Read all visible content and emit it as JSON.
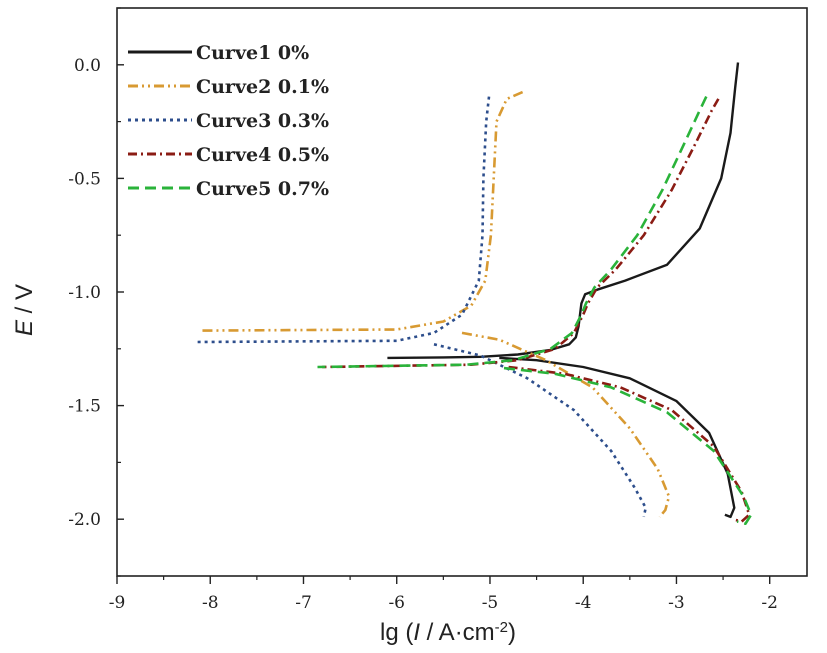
{
  "chart_data": {
    "type": "line",
    "xlabel_parts": {
      "pre": "lg (",
      "var": "I",
      "post": " / A·cm",
      "sup": "-2",
      "close": ")"
    },
    "ylabel_parts": {
      "var": "E",
      "post": " / V"
    },
    "xlim": [
      -9,
      -1.6
    ],
    "ylim": [
      -2.25,
      0.25
    ],
    "xticks": [
      -9,
      -8,
      -7,
      -6,
      -5,
      -4,
      -3,
      -2
    ],
    "yticks": [
      0.0,
      -0.5,
      -1.0,
      -1.5,
      -2.0
    ],
    "xtick_labels": [
      "-9",
      "-8",
      "-7",
      "-6",
      "-5",
      "-4",
      "-3",
      "-2"
    ],
    "ytick_labels": [
      "0.0",
      "-0.5",
      "-1.0",
      "-1.5",
      "-2.0"
    ],
    "grid": false,
    "legend_position": "top-left",
    "series": [
      {
        "name": "Curve1 0%",
        "color": "#1a1a1a",
        "dash": "solid",
        "points": [
          [
            -2.34,
            0.01
          ],
          [
            -2.37,
            -0.1
          ],
          [
            -2.42,
            -0.3
          ],
          [
            -2.52,
            -0.5
          ],
          [
            -2.75,
            -0.72
          ],
          [
            -3.1,
            -0.88
          ],
          [
            -3.55,
            -0.95
          ],
          [
            -3.85,
            -0.99
          ],
          [
            -3.98,
            -1.01
          ],
          [
            -4.02,
            -1.05
          ],
          [
            -4.05,
            -1.15
          ],
          [
            -4.08,
            -1.2
          ],
          [
            -4.15,
            -1.23
          ],
          [
            -4.35,
            -1.255
          ],
          [
            -4.7,
            -1.275
          ],
          [
            -5.1,
            -1.285
          ],
          [
            -5.5,
            -1.288
          ],
          [
            -6.1,
            -1.29
          ],
          null,
          [
            -4.9,
            -1.29
          ],
          [
            -4.5,
            -1.3
          ],
          [
            -4.0,
            -1.33
          ],
          [
            -3.5,
            -1.38
          ],
          [
            -3.0,
            -1.48
          ],
          [
            -2.65,
            -1.62
          ],
          [
            -2.45,
            -1.8
          ],
          [
            -2.38,
            -1.95
          ],
          [
            -2.42,
            -1.99
          ],
          [
            -2.48,
            -1.98
          ]
        ]
      },
      {
        "name": "Curve2 0.1%",
        "color": "#d89a32",
        "dash": "dashdotdot",
        "points": [
          [
            -4.65,
            -0.12
          ],
          [
            -4.82,
            -0.15
          ],
          [
            -4.93,
            -0.25
          ],
          [
            -4.96,
            -0.5
          ],
          [
            -4.99,
            -0.75
          ],
          [
            -5.05,
            -0.95
          ],
          [
            -5.2,
            -1.06
          ],
          [
            -5.5,
            -1.13
          ],
          [
            -6.0,
            -1.165
          ],
          [
            -8.1,
            -1.17
          ],
          null,
          [
            -5.3,
            -1.18
          ],
          [
            -4.9,
            -1.21
          ],
          [
            -4.4,
            -1.3
          ],
          [
            -3.9,
            -1.42
          ],
          [
            -3.5,
            -1.6
          ],
          [
            -3.2,
            -1.78
          ],
          [
            -3.08,
            -1.9
          ],
          [
            -3.12,
            -1.96
          ],
          [
            -3.18,
            -1.99
          ]
        ]
      },
      {
        "name": "Curve3 0.3%",
        "color": "#2d4e8c",
        "dash": "dot",
        "points": [
          [
            -5.01,
            -0.14
          ],
          [
            -5.04,
            -0.25
          ],
          [
            -5.07,
            -0.5
          ],
          [
            -5.08,
            -0.75
          ],
          [
            -5.12,
            -0.95
          ],
          [
            -5.3,
            -1.1
          ],
          [
            -5.6,
            -1.18
          ],
          [
            -6.0,
            -1.215
          ],
          [
            -8.15,
            -1.22
          ],
          null,
          [
            -5.6,
            -1.23
          ],
          [
            -5.1,
            -1.28
          ],
          [
            -4.6,
            -1.38
          ],
          [
            -4.1,
            -1.52
          ],
          [
            -3.7,
            -1.7
          ],
          [
            -3.45,
            -1.86
          ],
          [
            -3.33,
            -1.95
          ],
          [
            -3.35,
            -1.99
          ]
        ]
      },
      {
        "name": "Curve4 0.5%",
        "color": "#8b1c14",
        "dash": "dashdot",
        "points": [
          [
            -2.55,
            -0.15
          ],
          [
            -2.62,
            -0.2
          ],
          [
            -2.8,
            -0.35
          ],
          [
            -3.05,
            -0.55
          ],
          [
            -3.35,
            -0.75
          ],
          [
            -3.65,
            -0.9
          ],
          [
            -3.85,
            -0.98
          ],
          [
            -3.95,
            -1.05
          ],
          [
            -4.0,
            -1.1
          ],
          [
            -4.1,
            -1.18
          ],
          [
            -4.3,
            -1.25
          ],
          [
            -4.7,
            -1.3
          ],
          [
            -5.2,
            -1.32
          ],
          [
            -6.8,
            -1.33
          ],
          null,
          [
            -4.8,
            -1.33
          ],
          [
            -4.2,
            -1.36
          ],
          [
            -3.6,
            -1.42
          ],
          [
            -3.05,
            -1.52
          ],
          [
            -2.6,
            -1.68
          ],
          [
            -2.3,
            -1.88
          ],
          [
            -2.22,
            -1.98
          ],
          [
            -2.3,
            -2.01
          ],
          [
            -2.4,
            -2.0
          ]
        ]
      },
      {
        "name": "Curve5 0.7%",
        "color": "#2ab33a",
        "dash": "dash",
        "points": [
          [
            -2.68,
            -0.14
          ],
          [
            -2.75,
            -0.2
          ],
          [
            -2.92,
            -0.35
          ],
          [
            -3.15,
            -0.55
          ],
          [
            -3.42,
            -0.75
          ],
          [
            -3.7,
            -0.9
          ],
          [
            -3.88,
            -0.98
          ],
          [
            -3.97,
            -1.05
          ],
          [
            -4.02,
            -1.1
          ],
          [
            -4.12,
            -1.18
          ],
          [
            -4.35,
            -1.25
          ],
          [
            -4.75,
            -1.3
          ],
          [
            -5.25,
            -1.32
          ],
          [
            -6.85,
            -1.33
          ],
          null,
          [
            -4.85,
            -1.335
          ],
          [
            -4.3,
            -1.36
          ],
          [
            -3.7,
            -1.42
          ],
          [
            -3.1,
            -1.53
          ],
          [
            -2.6,
            -1.7
          ],
          [
            -2.28,
            -1.9
          ],
          [
            -2.2,
            -1.98
          ],
          [
            -2.26,
            -2.02
          ],
          [
            -2.35,
            -2.01
          ]
        ]
      }
    ]
  }
}
